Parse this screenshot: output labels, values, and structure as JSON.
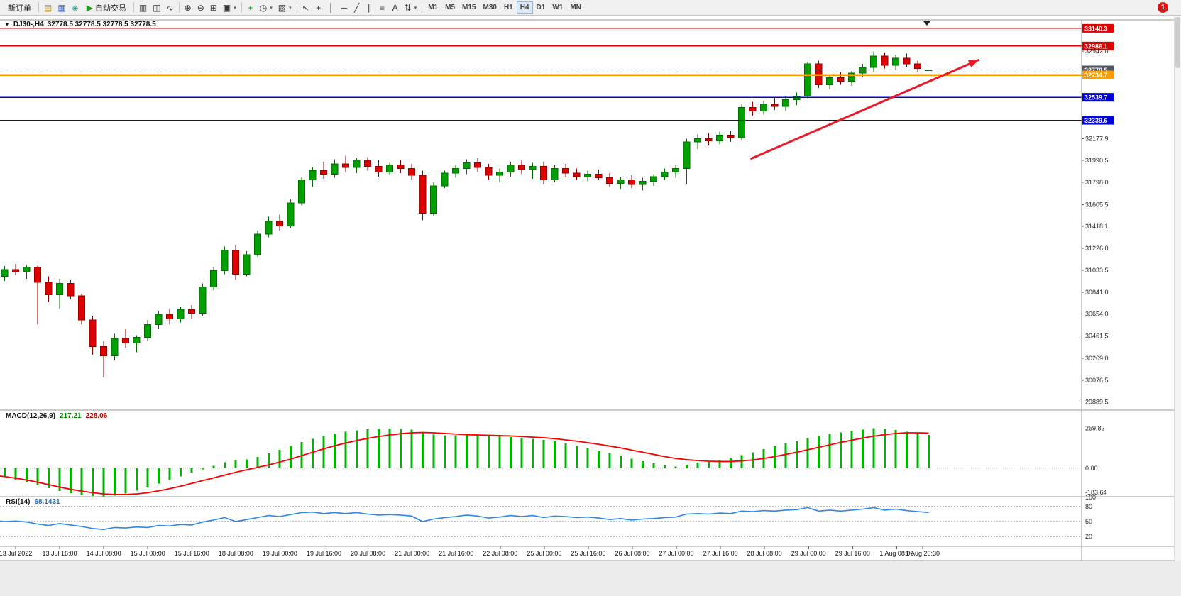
{
  "toolbar": {
    "new_order_label": "新订单",
    "autotrading_label": "自动交易",
    "notification_badge": "1",
    "timeframes": [
      "M1",
      "M5",
      "M15",
      "M30",
      "H1",
      "H4",
      "D1",
      "W1",
      "MN"
    ],
    "active_timeframe": "H4",
    "groups": {
      "left": [
        {
          "name": "trade-history-icon",
          "glyph": "▤",
          "color": "#c89018"
        },
        {
          "name": "market-watch-icon",
          "glyph": "▦",
          "color": "#3a62b8"
        },
        {
          "name": "community-icon",
          "glyph": "◈",
          "color": "#2a9a8a"
        }
      ],
      "chart_types": [
        {
          "name": "bars-chart-icon",
          "glyph": "▥",
          "color": "#333333"
        },
        {
          "name": "candlestick-chart-icon",
          "glyph": "◫",
          "color": "#333333"
        },
        {
          "name": "line-chart-icon",
          "glyph": "∿",
          "color": "#333333"
        }
      ],
      "zoom": [
        {
          "name": "zoom-in-icon",
          "glyph": "⊕",
          "color": "#333333"
        },
        {
          "name": "zoom-out-icon",
          "glyph": "⊖",
          "color": "#333333"
        }
      ],
      "windows": [
        {
          "name": "tile-windows-icon",
          "glyph": "⊞",
          "color": "#333333"
        },
        {
          "name": "new-chart-icon",
          "glyph": "▣",
          "color": "#333333",
          "dd": true
        }
      ],
      "tools": [
        {
          "name": "indicators-icon",
          "glyph": "+",
          "color": "#009000"
        },
        {
          "name": "periods-icon",
          "glyph": "◷",
          "color": "#333333",
          "dd": true
        },
        {
          "name": "templates-icon",
          "glyph": "▧",
          "color": "#333333",
          "dd": true
        }
      ],
      "line_studies": [
        {
          "name": "cursor-icon",
          "glyph": "↖",
          "color": "#333333"
        },
        {
          "name": "crosshair-icon",
          "glyph": "+",
          "color": "#333333"
        },
        {
          "name": "vertical-line-icon",
          "glyph": "│",
          "color": "#333333"
        },
        {
          "name": "horizontal-line-icon",
          "glyph": "─",
          "color": "#333333"
        },
        {
          "name": "trendline-icon",
          "glyph": "╱",
          "color": "#333333"
        },
        {
          "name": "channel-icon",
          "glyph": "∥",
          "color": "#333333"
        },
        {
          "name": "fibonacci-icon",
          "glyph": "≡",
          "color": "#333333"
        },
        {
          "name": "text-label-icon",
          "glyph": "A",
          "color": "#333333"
        },
        {
          "name": "arrows-icon",
          "glyph": "⇅",
          "color": "#333333",
          "dd": true
        }
      ]
    }
  },
  "chart": {
    "title": "DJ30-,H4",
    "ohlc_text": "32778.5 32778.5 32778.5 32778.5"
  },
  "chart_data": {
    "type": "candlestick",
    "symbol": "DJ30-",
    "period": "H4",
    "colors": {
      "bull": "#00a000",
      "bull_border": "#006d00",
      "bear": "#e00000",
      "bear_border": "#8f0000"
    },
    "candles": [
      [
        31010,
        31060,
        30950,
        30980
      ],
      [
        30980,
        31070,
        30940,
        31040
      ],
      [
        31040,
        31090,
        30990,
        31020
      ],
      [
        31020,
        31080,
        30960,
        31060
      ],
      [
        31060,
        31075,
        30560,
        30930
      ],
      [
        30930,
        30980,
        30760,
        30820
      ],
      [
        30820,
        30960,
        30700,
        30920
      ],
      [
        30920,
        30950,
        30780,
        30810
      ],
      [
        30810,
        30830,
        30560,
        30600
      ],
      [
        30600,
        30640,
        30300,
        30370
      ],
      [
        30370,
        30420,
        30100,
        30290
      ],
      [
        30290,
        30480,
        30250,
        30440
      ],
      [
        30440,
        30520,
        30360,
        30400
      ],
      [
        30400,
        30470,
        30320,
        30450
      ],
      [
        30450,
        30600,
        30420,
        30560
      ],
      [
        30560,
        30680,
        30520,
        30650
      ],
      [
        30650,
        30700,
        30560,
        30610
      ],
      [
        30610,
        30720,
        30580,
        30690
      ],
      [
        30690,
        30730,
        30610,
        30660
      ],
      [
        30660,
        30920,
        30640,
        30890
      ],
      [
        30890,
        31060,
        30860,
        31030
      ],
      [
        31030,
        31240,
        31000,
        31210
      ],
      [
        31210,
        31250,
        30950,
        31000
      ],
      [
        31000,
        31200,
        30980,
        31170
      ],
      [
        31170,
        31380,
        31150,
        31350
      ],
      [
        31350,
        31500,
        31320,
        31460
      ],
      [
        31460,
        31520,
        31380,
        31420
      ],
      [
        31420,
        31650,
        31400,
        31620
      ],
      [
        31620,
        31850,
        31600,
        31820
      ],
      [
        31820,
        31930,
        31760,
        31900
      ],
      [
        31900,
        31980,
        31830,
        31870
      ],
      [
        31870,
        32000,
        31840,
        31960
      ],
      [
        31960,
        32030,
        31890,
        31930
      ],
      [
        31930,
        32010,
        31880,
        31990
      ],
      [
        31990,
        32020,
        31900,
        31940
      ],
      [
        31940,
        31990,
        31850,
        31890
      ],
      [
        31890,
        31970,
        31860,
        31950
      ],
      [
        31950,
        31990,
        31880,
        31920
      ],
      [
        31920,
        31960,
        31820,
        31860
      ],
      [
        31860,
        31900,
        31470,
        31530
      ],
      [
        31530,
        31800,
        31510,
        31770
      ],
      [
        31770,
        31900,
        31750,
        31880
      ],
      [
        31880,
        31950,
        31840,
        31920
      ],
      [
        31920,
        32000,
        31870,
        31970
      ],
      [
        31970,
        32010,
        31890,
        31930
      ],
      [
        31930,
        31960,
        31820,
        31860
      ],
      [
        31860,
        31920,
        31800,
        31890
      ],
      [
        31890,
        31980,
        31850,
        31950
      ],
      [
        31950,
        31990,
        31870,
        31910
      ],
      [
        31910,
        31970,
        31830,
        31940
      ],
      [
        31940,
        31980,
        31780,
        31820
      ],
      [
        31820,
        31950,
        31800,
        31920
      ],
      [
        31920,
        31960,
        31850,
        31880
      ],
      [
        31880,
        31920,
        31820,
        31850
      ],
      [
        31850,
        31900,
        31810,
        31870
      ],
      [
        31870,
        31910,
        31820,
        31840
      ],
      [
        31840,
        31880,
        31760,
        31790
      ],
      [
        31790,
        31850,
        31740,
        31820
      ],
      [
        31820,
        31860,
        31750,
        31780
      ],
      [
        31780,
        31840,
        31730,
        31810
      ],
      [
        31810,
        31870,
        31770,
        31850
      ],
      [
        31850,
        31920,
        31820,
        31890
      ],
      [
        31890,
        31950,
        31840,
        31920
      ],
      [
        31920,
        32180,
        31780,
        32150
      ],
      [
        32150,
        32220,
        32090,
        32180
      ],
      [
        32180,
        32230,
        32120,
        32160
      ],
      [
        32160,
        32240,
        32130,
        32210
      ],
      [
        32210,
        32250,
        32150,
        32190
      ],
      [
        32190,
        32480,
        32160,
        32450
      ],
      [
        32450,
        32500,
        32380,
        32420
      ],
      [
        32420,
        32510,
        32390,
        32480
      ],
      [
        32480,
        32540,
        32430,
        32460
      ],
      [
        32460,
        32550,
        32420,
        32520
      ],
      [
        32520,
        32580,
        32470,
        32550
      ],
      [
        32550,
        32850,
        32530,
        32830
      ],
      [
        32830,
        32860,
        32620,
        32650
      ],
      [
        32650,
        32740,
        32610,
        32710
      ],
      [
        32710,
        32760,
        32650,
        32680
      ],
      [
        32680,
        32770,
        32640,
        32750
      ],
      [
        32750,
        32830,
        32720,
        32800
      ],
      [
        32800,
        32940,
        32760,
        32900
      ],
      [
        32900,
        32930,
        32790,
        32820
      ],
      [
        32820,
        32910,
        32780,
        32880
      ],
      [
        32880,
        32920,
        32800,
        32830
      ],
      [
        32830,
        32860,
        32760,
        32790
      ],
      [
        32778.5,
        32778.5,
        32778.5,
        32778.5
      ]
    ],
    "horizontal_lines": [
      {
        "name": "resistance-line-1",
        "price": 33140.3,
        "label": "33140.3",
        "color": "#e00000",
        "width": 1.4,
        "label_bg": "#e00000"
      },
      {
        "name": "resistance-line-2",
        "price": 32986.1,
        "label": "32986.1",
        "color": "#e00000",
        "width": 1.4,
        "label_bg": "#e00000"
      },
      {
        "name": "bid-price-line",
        "price": 32778.5,
        "label": "32778.5",
        "color": "#9aa0a6",
        "width": 1,
        "dash": "4,3",
        "label_bg": "#4f565e"
      },
      {
        "name": "piv​ot-line",
        "price": 32734.7,
        "label": "32734.7",
        "color": "#ff9c00",
        "width": 2.4,
        "label_bg": "#ff9c00"
      },
      {
        "name": "support-line-1",
        "price": 32539.7,
        "label": "32539.7",
        "color": "#0000d8",
        "width": 1.4,
        "label_bg": "#0000d8"
      },
      {
        "name": "support-line-2",
        "price": 32339.6,
        "label": "32339.6",
        "color": "#0000d8",
        "width": 1.4,
        "label_bg": "#0000d8"
      }
    ],
    "price_axis_labels": [
      "32942.0",
      "32177.9",
      "31990.5",
      "31798.0",
      "31605.5",
      "31418.1",
      "31226.0",
      "31033.5",
      "30841.0",
      "30654.0",
      "30461.5",
      "30269.0",
      "30076.5",
      "29889.5"
    ],
    "time_labels": [
      "13 Jul 2022",
      "13 Jul 16:00",
      "14 Jul 08:00",
      "15 Jul 00:00",
      "15 Jul 16:00",
      "18 Jul 08:00",
      "19 Jul 00:00",
      "19 Jul 16:00",
      "20 Jul 08:00",
      "21 Jul 00:00",
      "21 Jul 16:00",
      "22 Jul 08:00",
      "25 Jul 00:00",
      "25 Jul 16:00",
      "26 Jul 08:00",
      "27 Jul 00:00",
      "27 Jul 16:00",
      "28 Jul 08:00",
      "29 Jul 00:00",
      "29 Jul 16:00",
      "1 Aug 08:00",
      "1 Aug 20:30"
    ],
    "trend_arrow": {
      "from_candle": 68.8,
      "from_price": 32003,
      "to_candle": 89.6,
      "to_price": 32868,
      "color": "#f01828"
    }
  },
  "macd": {
    "title": "MACD(12,26,9)",
    "main_value": "217.21",
    "signal_value": "228.06",
    "axis_labels": [
      "259.82",
      "0.00",
      "-183.64"
    ],
    "color_histogram": "#00b400",
    "color_signal": "#ff0000",
    "histogram": [
      -40,
      -58,
      -74,
      -90,
      -108,
      -128,
      -148,
      -162,
      -172,
      -180,
      -183.6,
      -176,
      -163,
      -146,
      -124,
      -100,
      -76,
      -52,
      -28,
      -6,
      16,
      40,
      52,
      58,
      74,
      96,
      120,
      146,
      170,
      192,
      210,
      224,
      236,
      246,
      252,
      256,
      258,
      256,
      250,
      228,
      218,
      214,
      214,
      216,
      214,
      210,
      206,
      202,
      198,
      192,
      184,
      174,
      162,
      148,
      132,
      116,
      98,
      80,
      62,
      46,
      32,
      20,
      12,
      24,
      36,
      46,
      56,
      64,
      84,
      104,
      124,
      142,
      160,
      176,
      196,
      210,
      222,
      232,
      242,
      250,
      259.8,
      256,
      248,
      238,
      228,
      217.2
    ],
    "signal": [
      -46,
      -54,
      -64,
      -76,
      -90,
      -106,
      -122,
      -136,
      -148,
      -158,
      -166,
      -170,
      -170,
      -166,
      -158,
      -146,
      -132,
      -116,
      -98,
      -80,
      -62,
      -44,
      -26,
      -10,
      6,
      22,
      40,
      60,
      82,
      104,
      126,
      146,
      164,
      180,
      194,
      206,
      216,
      224,
      230,
      232,
      230,
      226,
      222,
      218,
      216,
      214,
      212,
      210,
      206,
      202,
      198,
      192,
      184,
      176,
      166,
      156,
      144,
      132,
      118,
      104,
      90,
      76,
      64,
      56,
      50,
      46,
      44,
      44,
      48,
      54,
      64,
      76,
      90,
      104,
      120,
      136,
      152,
      168,
      182,
      196,
      208,
      218,
      226,
      230,
      230,
      228.1
    ]
  },
  "rsi": {
    "title": "RSI(14)",
    "value": "68.1431",
    "axis_labels": [
      "100",
      "80",
      "50",
      "20"
    ],
    "levels": [
      80,
      50,
      20
    ],
    "color": "#2e86e8",
    "values": [
      52,
      50,
      51,
      49,
      45,
      42,
      46,
      43,
      40,
      36,
      34,
      38,
      37,
      39,
      38,
      42,
      41,
      44,
      43,
      49,
      53,
      58,
      50,
      54,
      58,
      62,
      60,
      64,
      68,
      69,
      66,
      68,
      66,
      68,
      65,
      63,
      64,
      63,
      61,
      50,
      55,
      58,
      60,
      63,
      61,
      57,
      59,
      62,
      60,
      62,
      58,
      61,
      60,
      58,
      59,
      57,
      54,
      56,
      53,
      55,
      56,
      58,
      59,
      65,
      66,
      65,
      67,
      66,
      71,
      70,
      72,
      71,
      73,
      74,
      78,
      71,
      73,
      71,
      73,
      75,
      78,
      73,
      75,
      72,
      70,
      68.14
    ]
  }
}
